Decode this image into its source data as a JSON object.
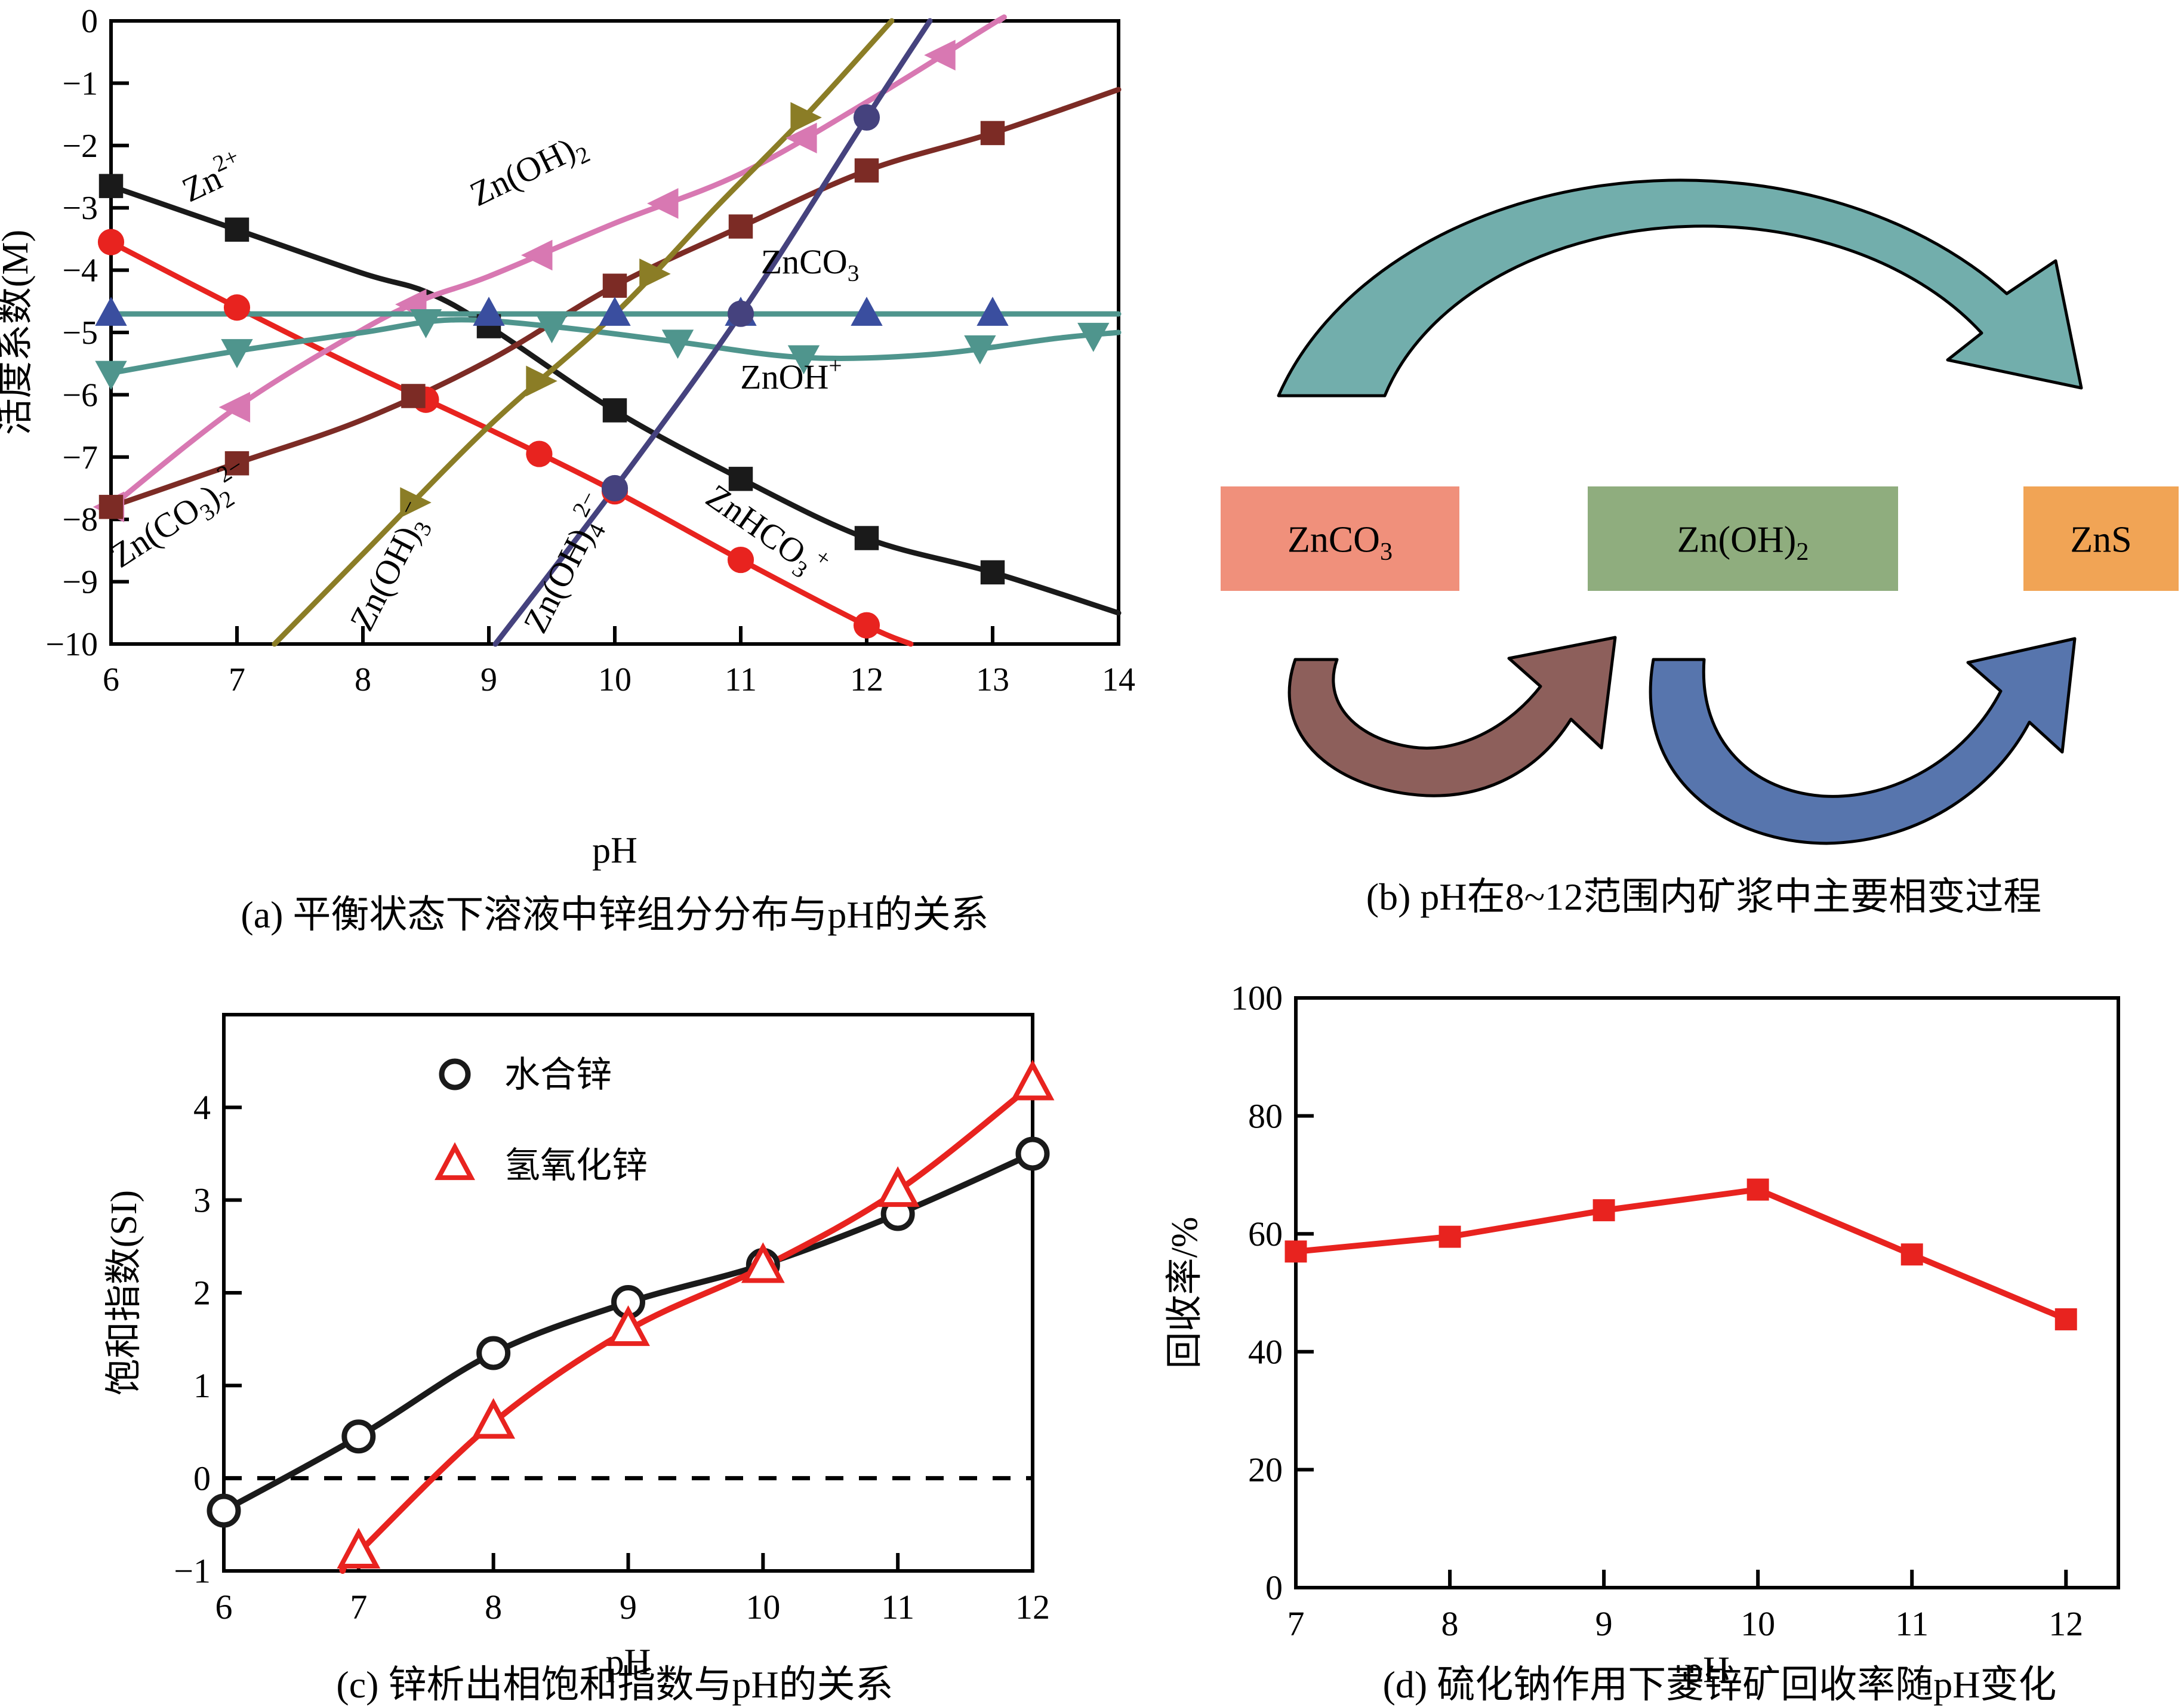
{
  "panels": {
    "a": {
      "caption": "(a) 平衡状态下溶液中锌组分分布与pH的关系"
    },
    "b": {
      "caption": "(b) pH在8~12范围内矿浆中主要相变过程",
      "boxes": [
        {
          "label": "ZnCO_3_",
          "color": "#f0907b"
        },
        {
          "label": "Zn(OH)_2_",
          "color": "#8fad7e"
        },
        {
          "label": "ZnS",
          "color": "#f1a455"
        }
      ],
      "arrows": [
        {
          "name": "carbonate-to-sulfide-top-arc",
          "color": "#72aeac"
        },
        {
          "name": "carbonate-to-hydroxide-arc",
          "color": "#8d5f5b"
        },
        {
          "name": "hydroxide-to-sulfide-arc",
          "color": "#5775ad"
        }
      ]
    },
    "c": {
      "caption": "(c) 锌析出相饱和指数与pH的关系"
    },
    "d": {
      "caption": "(d) 硫化钠作用下菱锌矿回收率随pH变化"
    }
  },
  "chart_data": [
    {
      "id": "a",
      "type": "line",
      "title": "(a) 平衡状态下溶液中锌组分分布与pH的关系",
      "xlabel": "pH",
      "ylabel": "活度系数(M)",
      "xlim": [
        6,
        14
      ],
      "ylim": [
        -10,
        0
      ],
      "x_ticks": [
        6,
        7,
        8,
        9,
        10,
        11,
        12,
        13,
        14
      ],
      "y_ticks": [
        0,
        -1,
        -2,
        -3,
        -4,
        -5,
        -6,
        -7,
        -8,
        -9,
        -10
      ],
      "grid": false,
      "legend_position": "none",
      "series": [
        {
          "name": "Zn^2+^",
          "color": "#1a1a1a",
          "marker": "square",
          "x": [
            6,
            7,
            8,
            8.5,
            9,
            10,
            11,
            12,
            13,
            14
          ],
          "y": [
            -2.65,
            -3.35,
            -4.05,
            -4.35,
            -4.9,
            -6.25,
            -7.35,
            -8.3,
            -8.85,
            -9.5
          ],
          "marker_x": [
            6,
            7,
            9,
            10,
            11,
            12,
            13
          ],
          "marker_y": [
            -2.65,
            -3.35,
            -4.9,
            -6.25,
            -7.35,
            -8.3,
            -8.85
          ]
        },
        {
          "name": "ZnHCO_3_^+^",
          "color": "#e8231f",
          "marker": "circle",
          "x": [
            6,
            7,
            8,
            9,
            10,
            11,
            12,
            12.35
          ],
          "y": [
            -3.55,
            -4.6,
            -5.6,
            -6.55,
            -7.55,
            -8.65,
            -9.7,
            -10
          ],
          "marker_x": [
            6,
            7,
            8.5,
            9.4,
            10,
            11,
            12
          ],
          "marker_y": [
            -3.55,
            -4.6,
            -6.08,
            -6.95,
            -7.55,
            -8.65,
            -9.7
          ]
        },
        {
          "name": "Zn(OH)_2_",
          "color": "#d878b2",
          "marker": "tri-left",
          "x": [
            6,
            7,
            8,
            8.5,
            9,
            10,
            11,
            12,
            13,
            13.05
          ],
          "y": [
            -7.8,
            -6.2,
            -4.95,
            -4.45,
            -4.1,
            -3.25,
            -2.45,
            -1.3,
            -0.05,
            0
          ],
          "marker_x": [
            6,
            7,
            8.4,
            9.4,
            10.4,
            11.5,
            12.6
          ],
          "marker_y": [
            -7.8,
            -6.2,
            -4.55,
            -3.76,
            -2.93,
            -1.88,
            -0.55
          ]
        },
        {
          "name": "Zn(CO_3_)_2_^2−^",
          "color": "#7c2b25",
          "marker": "square",
          "x": [
            6,
            7,
            8,
            9,
            10,
            11,
            12,
            13,
            14
          ],
          "y": [
            -7.8,
            -7.1,
            -6.4,
            -5.45,
            -4.25,
            -3.3,
            -2.4,
            -1.8,
            -1.1
          ],
          "marker_x": [
            6,
            7,
            8.4,
            10,
            11,
            12,
            13
          ],
          "marker_y": [
            -7.8,
            -7.1,
            -6.02,
            -4.25,
            -3.3,
            -2.4,
            -1.8
          ]
        },
        {
          "name": "ZnCO_3_",
          "color": "#4f958d",
          "marker": "tri-up",
          "marker_color": "#3a4e9f",
          "x": [
            6,
            14
          ],
          "y": [
            -4.7,
            -4.7
          ],
          "marker_x": [
            6,
            9,
            10,
            11,
            12,
            13
          ],
          "marker_y": [
            -4.7,
            -4.7,
            -4.7,
            -4.7,
            -4.7,
            -4.7
          ]
        },
        {
          "name": "ZnOH^+^",
          "color": "#4f958d",
          "marker": "tri-down",
          "x": [
            6,
            7,
            8,
            8.7,
            9.5,
            10.5,
            11.5,
            12.5,
            13.5,
            14
          ],
          "y": [
            -5.65,
            -5.3,
            -5.0,
            -4.8,
            -4.9,
            -5.15,
            -5.4,
            -5.35,
            -5.1,
            -5.0
          ],
          "marker_x": [
            6,
            7,
            8.5,
            9.5,
            10.5,
            11.5,
            12.9,
            13.8
          ],
          "marker_y": [
            -5.65,
            -5.3,
            -4.82,
            -4.9,
            -5.15,
            -5.4,
            -5.24,
            -5.04
          ]
        },
        {
          "name": "Zn(OH)_3_^−^",
          "color": "#8b7d26",
          "marker": "tri-right",
          "x": [
            7.3,
            8,
            9,
            10,
            10.8,
            11.5,
            12.2
          ],
          "y": [
            -10,
            -8.55,
            -6.5,
            -4.7,
            -3.0,
            -1.55,
            0
          ],
          "marker_x": [
            8.4,
            9.4,
            10.3,
            11.5
          ],
          "marker_y": [
            -7.73,
            -5.78,
            -4.06,
            -1.55
          ]
        },
        {
          "name": "Zn(OH)_4_^2−^",
          "color": "#45427e",
          "marker": "circle",
          "x": [
            9.05,
            10,
            11,
            12,
            12.5
          ],
          "y": [
            -10,
            -7.5,
            -4.7,
            -1.55,
            0
          ],
          "marker_x": [
            10,
            11,
            12
          ],
          "marker_y": [
            -7.5,
            -4.7,
            -1.55
          ]
        }
      ],
      "labels": [
        {
          "text": "Zn^2+^",
          "x": 6.85,
          "y": -2.7,
          "rot": -25
        },
        {
          "text": "Zn(OH)_2_",
          "x": 9.35,
          "y": -2.55,
          "rot": -26
        },
        {
          "text": "ZnCO_3_",
          "x": 11.55,
          "y": -4.05,
          "rot": 0
        },
        {
          "text": "ZnOH^+^",
          "x": 11.4,
          "y": -5.9,
          "rot": 0
        },
        {
          "text": "Zn(CO_3_)_2_^2−^",
          "x": 6.6,
          "y": -8.1,
          "rot": -33
        },
        {
          "text": "Zn(OH)_3_^−^",
          "x": 8.3,
          "y": -8.85,
          "rot": -63
        },
        {
          "text": "Zn(OH)_4_^2−^",
          "x": 9.7,
          "y": -8.8,
          "rot": -63
        },
        {
          "text": "ZnHCO_3_^+^",
          "x": 11.15,
          "y": -8.35,
          "rot": 35
        }
      ]
    },
    {
      "id": "c",
      "type": "line",
      "title": "(c) 锌析出相饱和指数与pH的关系",
      "xlabel": "pH",
      "ylabel": "饱和指数(SI)",
      "xlim": [
        6,
        12
      ],
      "ylim": [
        -1,
        5
      ],
      "x_ticks": [
        6,
        7,
        8,
        9,
        10,
        11,
        12
      ],
      "y_ticks": [
        -1,
        0,
        1,
        2,
        3,
        4
      ],
      "grid": false,
      "ref_line_y": 0,
      "legend_position": "top-left-inside",
      "series": [
        {
          "name": "水合锌",
          "color": "#1a1a1a",
          "marker": "open-circle",
          "x": [
            6,
            7,
            8,
            9,
            10,
            11,
            12
          ],
          "y": [
            -0.35,
            0.45,
            1.35,
            1.9,
            2.3,
            2.85,
            3.5
          ]
        },
        {
          "name": "氢氧化锌",
          "color": "#e8231f",
          "marker": "open-tri-up",
          "x": [
            6.88,
            7,
            8,
            9,
            10,
            11,
            12
          ],
          "y": [
            -1,
            -0.8,
            0.6,
            1.6,
            2.28,
            3.1,
            4.25
          ],
          "marker_x": [
            7,
            8,
            9,
            10,
            11,
            12
          ],
          "marker_y": [
            -0.8,
            0.6,
            1.6,
            2.28,
            3.1,
            4.25
          ]
        }
      ],
      "labels": []
    },
    {
      "id": "d",
      "type": "line",
      "title": "(d) 硫化钠作用下菱锌矿回收率随pH变化",
      "xlabel": "pH",
      "ylabel": "回收率/%",
      "xlim": [
        7,
        12.34
      ],
      "ylim": [
        0,
        100
      ],
      "x_ticks": [
        7,
        8,
        9,
        10,
        11,
        12
      ],
      "y_ticks": [
        0,
        20,
        40,
        60,
        80,
        100
      ],
      "grid": false,
      "smooth": false,
      "legend_position": "none",
      "series": [
        {
          "name": "回收率",
          "color": "#e8231f",
          "marker": "square",
          "x": [
            7,
            8,
            9,
            10,
            11,
            12
          ],
          "y": [
            57,
            59.5,
            64,
            67.5,
            56.5,
            45.5
          ]
        }
      ],
      "labels": []
    }
  ]
}
